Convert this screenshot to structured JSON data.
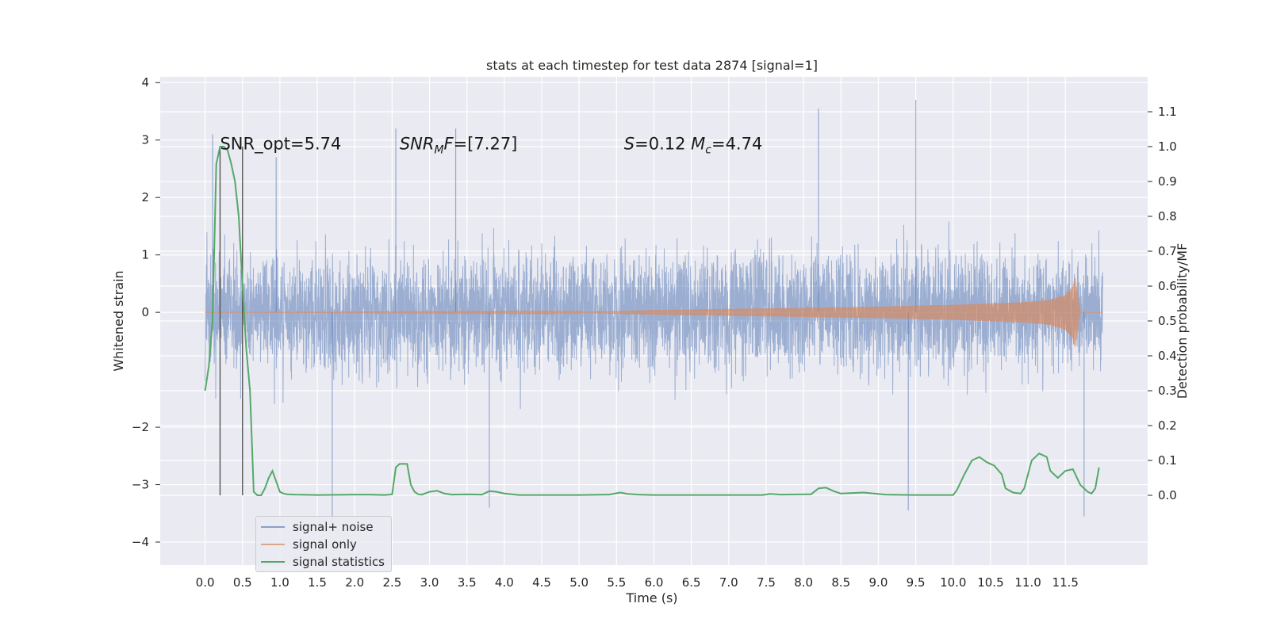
{
  "chart_data": {
    "type": "line",
    "title": "stats at each timestep for test data 2874 [signal=1]",
    "xlabel": "Time (s)",
    "ylabel": "Whitened strain",
    "ylabel_right": "Detection probability/MF",
    "xlim": [
      -0.6,
      12.6
    ],
    "ylim": [
      -4.4,
      4.1
    ],
    "ylim_right": [
      -0.2,
      1.2
    ],
    "x_ticks": [
      "0.0",
      "0.5",
      "1.0",
      "1.5",
      "2.0",
      "2.5",
      "3.0",
      "3.5",
      "4.0",
      "4.5",
      "5.0",
      "5.5",
      "6.0",
      "6.5",
      "7.0",
      "7.5",
      "8.0",
      "8.5",
      "9.0",
      "9.5",
      "10.0",
      "10.5",
      "11.0",
      "11.5"
    ],
    "y_ticks": [
      "4",
      "3",
      "2",
      "1",
      "0",
      "−2",
      "−3",
      "−4"
    ],
    "y_ticks_right": [
      "1.1",
      "1.0",
      "0.9",
      "0.8",
      "0.7",
      "0.6",
      "0.5",
      "0.4",
      "0.3",
      "0.2",
      "0.1",
      "0.0"
    ],
    "grid": true,
    "legend_position": "lower-left",
    "series": [
      {
        "name": "signal+ noise",
        "color": "#4c72b0",
        "axis": "left",
        "x_range": [
          0.0,
          12.0
        ],
        "typical_envelope": [
          -1.6,
          1.6
        ],
        "peaks": [
          [
            0.1,
            3.1
          ],
          [
            0.95,
            2.7
          ],
          [
            1.7,
            -3.7
          ],
          [
            2.55,
            3.2
          ],
          [
            3.35,
            3.2
          ],
          [
            3.8,
            -3.4
          ],
          [
            8.2,
            3.55
          ],
          [
            9.5,
            3.7
          ],
          [
            9.4,
            -3.45
          ],
          [
            11.75,
            -3.55
          ]
        ]
      },
      {
        "name": "signal only",
        "color": "#dd8452",
        "axis": "left",
        "x": [
          0.0,
          5.0,
          6.0,
          7.0,
          8.0,
          9.0,
          10.0,
          11.0,
          11.3,
          11.5,
          11.6,
          11.63,
          11.7,
          12.0
        ],
        "amplitude": [
          0.0,
          0.01,
          0.04,
          0.06,
          0.08,
          0.1,
          0.13,
          0.18,
          0.22,
          0.3,
          0.45,
          0.62,
          0.0,
          0.0
        ]
      },
      {
        "name": "signal statistics",
        "color": "#55a868",
        "axis": "right",
        "x": [
          0.0,
          0.05,
          0.1,
          0.15,
          0.2,
          0.25,
          0.3,
          0.35,
          0.4,
          0.45,
          0.5,
          0.55,
          0.6,
          0.65,
          0.7,
          0.75,
          0.8,
          0.85,
          0.9,
          0.95,
          1.0,
          1.05,
          1.1,
          1.2,
          1.5,
          2.0,
          2.2,
          2.4,
          2.5,
          2.55,
          2.6,
          2.7,
          2.75,
          2.8,
          2.85,
          2.9,
          3.0,
          3.1,
          3.2,
          3.3,
          3.5,
          3.7,
          3.8,
          3.9,
          4.0,
          4.2,
          4.5,
          5.0,
          5.4,
          5.55,
          5.65,
          5.8,
          6.0,
          6.5,
          7.0,
          7.45,
          7.55,
          7.7,
          8.1,
          8.2,
          8.3,
          8.4,
          8.5,
          8.8,
          9.1,
          9.5,
          10.0,
          10.05,
          10.15,
          10.25,
          10.35,
          10.45,
          10.55,
          10.65,
          10.7,
          10.8,
          10.9,
          10.95,
          11.05,
          11.15,
          11.25,
          11.3,
          11.4,
          11.5,
          11.6,
          11.7,
          11.8,
          11.85,
          11.9,
          11.95
        ],
        "values": [
          0.3,
          0.37,
          0.5,
          0.95,
          1.0,
          1.0,
          0.99,
          0.95,
          0.9,
          0.8,
          0.6,
          0.42,
          0.3,
          0.01,
          0.0,
          0.0,
          0.02,
          0.05,
          0.07,
          0.04,
          0.01,
          0.005,
          0.003,
          0.002,
          0.001,
          0.002,
          0.002,
          0.001,
          0.003,
          0.08,
          0.09,
          0.09,
          0.03,
          0.01,
          0.003,
          0.002,
          0.01,
          0.013,
          0.005,
          0.002,
          0.003,
          0.002,
          0.012,
          0.01,
          0.005,
          0.001,
          0.001,
          0.001,
          0.002,
          0.008,
          0.004,
          0.002,
          0.001,
          0.001,
          0.001,
          0.001,
          0.004,
          0.002,
          0.003,
          0.02,
          0.022,
          0.012,
          0.005,
          0.008,
          0.002,
          0.001,
          0.001,
          0.015,
          0.06,
          0.1,
          0.11,
          0.095,
          0.085,
          0.06,
          0.02,
          0.008,
          0.005,
          0.02,
          0.1,
          0.12,
          0.11,
          0.07,
          0.05,
          0.07,
          0.075,
          0.03,
          0.01,
          0.005,
          0.02,
          0.08
        ]
      }
    ],
    "vlines": [
      0.2,
      0.5
    ],
    "annotations": [
      {
        "id": "snr_opt",
        "text": "SNR_opt=5.74",
        "x": 0.2,
        "y": 2.95
      },
      {
        "id": "snr_mf",
        "text": "SNR_MF=[7.27]",
        "x": 2.6,
        "y": 2.95
      },
      {
        "id": "s_mc",
        "text": "S=0.12   M_c=4.74",
        "x": 5.6,
        "y": 2.95
      }
    ]
  }
}
